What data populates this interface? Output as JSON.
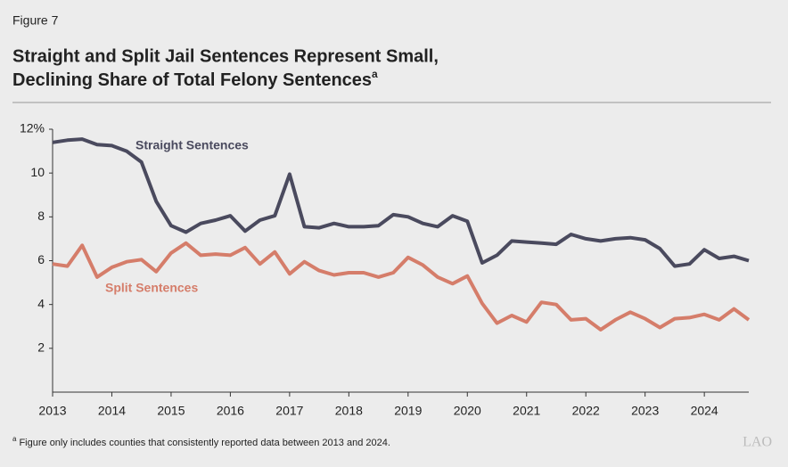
{
  "figure_label": "Figure 7",
  "title_lines": [
    "Straight and Split Jail Sentences Represent Small,",
    "Declining Share of Total Felony Sentences"
  ],
  "title_note": "a",
  "footnote": {
    "marker": "a",
    "text": "Figure only includes counties that consistently reported data between 2013 and 2024."
  },
  "logo": "LAO",
  "chart_data": {
    "type": "line",
    "x": [
      2013,
      2013.25,
      2013.5,
      2013.75,
      2014,
      2014.25,
      2014.5,
      2014.75,
      2015,
      2015.25,
      2015.5,
      2015.75,
      2016,
      2016.25,
      2016.5,
      2016.75,
      2017,
      2017.25,
      2017.5,
      2017.75,
      2018,
      2018.25,
      2018.5,
      2018.75,
      2019,
      2019.25,
      2019.5,
      2019.75,
      2020,
      2020.25,
      2020.5,
      2020.75,
      2021,
      2021.25,
      2021.5,
      2021.75,
      2022,
      2022.25,
      2022.5,
      2022.75,
      2023,
      2023.25,
      2023.5,
      2023.75,
      2024,
      2024.25,
      2024.5,
      2024.75
    ],
    "series": [
      {
        "name": "Straight Sentences",
        "color": "#4a4a5e",
        "values": [
          11.4,
          11.5,
          11.55,
          11.3,
          11.25,
          11.0,
          10.5,
          8.7,
          7.6,
          7.3,
          7.7,
          7.85,
          8.05,
          7.35,
          7.85,
          8.05,
          9.95,
          7.55,
          7.5,
          7.7,
          7.55,
          7.55,
          7.6,
          8.1,
          8.0,
          7.7,
          7.55,
          8.05,
          7.8,
          5.9,
          6.25,
          6.9,
          6.85,
          6.8,
          6.75,
          7.2,
          7.0,
          6.9,
          7.0,
          7.05,
          6.95,
          6.55,
          5.75,
          5.85,
          6.5,
          6.1,
          6.2,
          6.0
        ]
      },
      {
        "name": "Split Sentences",
        "color": "#d57d6a",
        "values": [
          5.85,
          5.75,
          6.7,
          5.25,
          5.7,
          5.95,
          6.05,
          5.5,
          6.35,
          6.8,
          6.25,
          6.3,
          6.25,
          6.6,
          5.85,
          6.4,
          5.4,
          5.95,
          5.55,
          5.35,
          5.45,
          5.45,
          5.25,
          5.45,
          6.15,
          5.8,
          5.25,
          4.95,
          5.3,
          4.05,
          3.15,
          3.5,
          3.2,
          4.1,
          4.0,
          3.3,
          3.35,
          2.85,
          3.3,
          3.65,
          3.35,
          2.95,
          3.35,
          3.4,
          3.55,
          3.3,
          3.8,
          3.3
        ]
      }
    ],
    "xlim": [
      2013,
      2024.75
    ],
    "xticks": [
      2013,
      2014,
      2015,
      2016,
      2017,
      2018,
      2019,
      2020,
      2021,
      2022,
      2023,
      2024
    ],
    "ylim": [
      0,
      12
    ],
    "yticks": [
      2,
      4,
      6,
      8,
      10,
      {
        "value": 12,
        "label": "12%"
      }
    ]
  }
}
